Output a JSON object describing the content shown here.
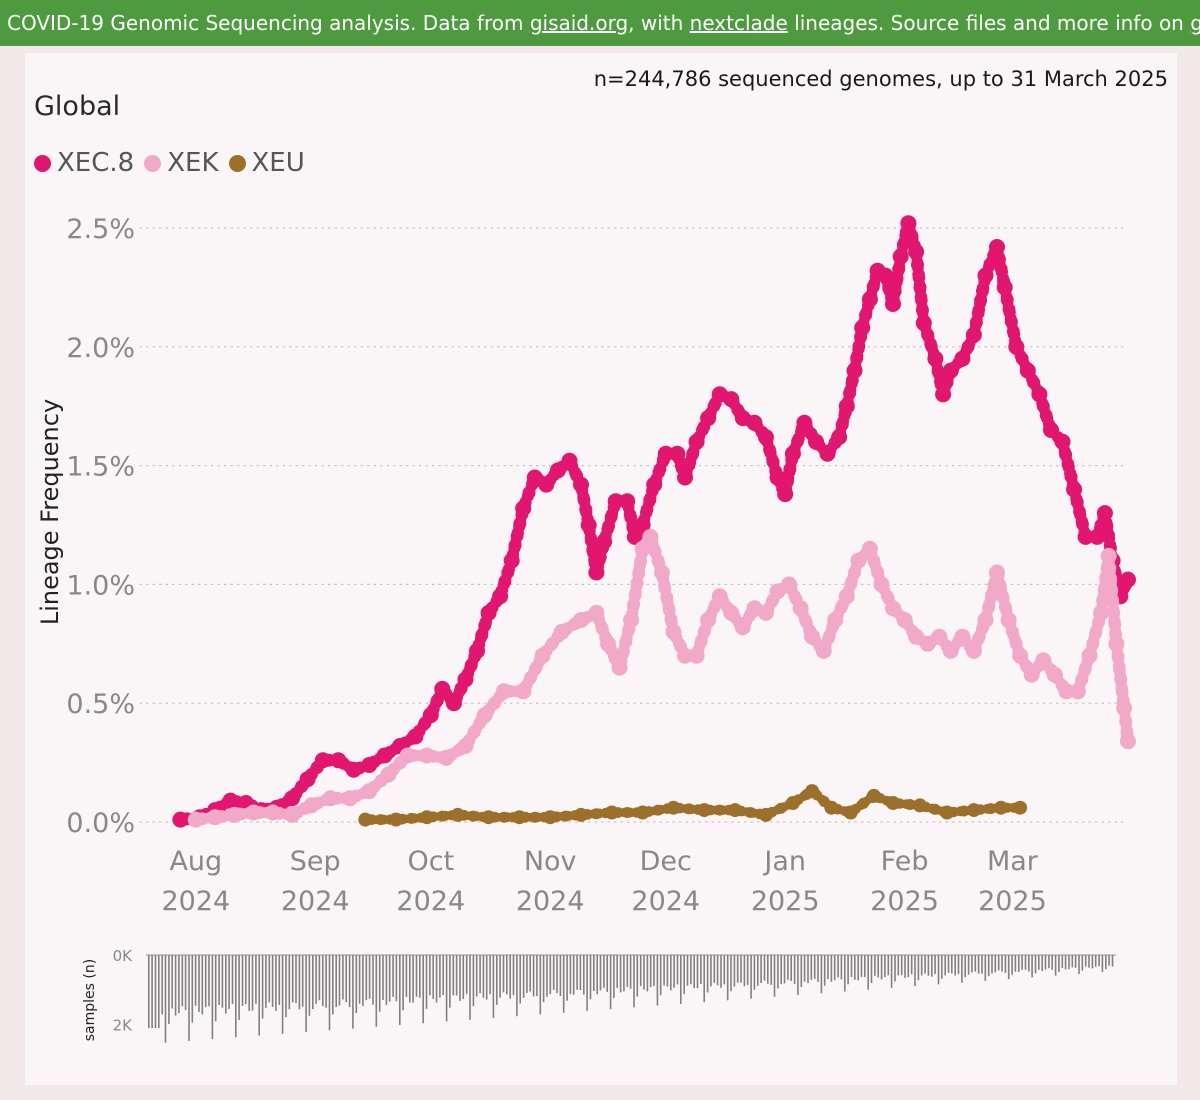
{
  "banner": {
    "text1": "COVID-19 Genomic Sequencing analysis. Data from ",
    "link1": "gisaid.org",
    "text2": ", with ",
    "link2": "nextclade",
    "text3": " lineages. Source files and more info on ",
    "link3": "github",
    "text4": ".",
    "color": "#4e9a3e"
  },
  "subtitle": "n=244,786 sequenced genomes, up to 31 March 2025",
  "region_title": "Global",
  "chart_data": {
    "type": "scatter",
    "ylabel": "Lineage Frequency",
    "y_tick_labels": [
      "0.0%",
      "0.5%",
      "1.0%",
      "1.5%",
      "2.0%",
      "2.5%"
    ],
    "y_ticks": [
      0,
      0.5,
      1.0,
      1.5,
      2.0,
      2.5
    ],
    "ylim": [
      0,
      2.7
    ],
    "x_range": [
      "2024-07-24",
      "2025-03-31"
    ],
    "x_ticks": [
      {
        "date": "2024-08-01",
        "month": "Aug",
        "year": "2024"
      },
      {
        "date": "2024-09-01",
        "month": "Sep",
        "year": "2024"
      },
      {
        "date": "2024-10-01",
        "month": "Oct",
        "year": "2024"
      },
      {
        "date": "2024-11-01",
        "month": "Nov",
        "year": "2024"
      },
      {
        "date": "2024-12-01",
        "month": "Dec",
        "year": "2024"
      },
      {
        "date": "2025-01-01",
        "month": "Jan",
        "year": "2025"
      },
      {
        "date": "2025-02-01",
        "month": "Feb",
        "year": "2025"
      },
      {
        "date": "2025-03-01",
        "month": "Mar",
        "year": "2025"
      }
    ],
    "grid": "horizontal-dotted",
    "legend_position": "top-left",
    "series": [
      {
        "name": "XEC.8",
        "color": "#e2166f",
        "points": [
          [
            "2024-07-28",
            0.01
          ],
          [
            "2024-08-02",
            0.02
          ],
          [
            "2024-08-06",
            0.05
          ],
          [
            "2024-08-10",
            0.09
          ],
          [
            "2024-08-14",
            0.08
          ],
          [
            "2024-08-18",
            0.05
          ],
          [
            "2024-08-22",
            0.06
          ],
          [
            "2024-08-26",
            0.1
          ],
          [
            "2024-08-30",
            0.18
          ],
          [
            "2024-09-03",
            0.26
          ],
          [
            "2024-09-07",
            0.26
          ],
          [
            "2024-09-11",
            0.22
          ],
          [
            "2024-09-15",
            0.24
          ],
          [
            "2024-09-19",
            0.28
          ],
          [
            "2024-09-23",
            0.32
          ],
          [
            "2024-09-27",
            0.36
          ],
          [
            "2024-10-01",
            0.45
          ],
          [
            "2024-10-04",
            0.56
          ],
          [
            "2024-10-07",
            0.5
          ],
          [
            "2024-10-10",
            0.6
          ],
          [
            "2024-10-13",
            0.72
          ],
          [
            "2024-10-16",
            0.88
          ],
          [
            "2024-10-19",
            0.95
          ],
          [
            "2024-10-22",
            1.1
          ],
          [
            "2024-10-25",
            1.32
          ],
          [
            "2024-10-28",
            1.45
          ],
          [
            "2024-10-31",
            1.42
          ],
          [
            "2024-11-03",
            1.48
          ],
          [
            "2024-11-06",
            1.52
          ],
          [
            "2024-11-09",
            1.42
          ],
          [
            "2024-11-11",
            1.25
          ],
          [
            "2024-11-13",
            1.05
          ],
          [
            "2024-11-15",
            1.18
          ],
          [
            "2024-11-18",
            1.35
          ],
          [
            "2024-11-21",
            1.35
          ],
          [
            "2024-11-23",
            1.2
          ],
          [
            "2024-11-25",
            1.25
          ],
          [
            "2024-11-28",
            1.42
          ],
          [
            "2024-12-01",
            1.55
          ],
          [
            "2024-12-04",
            1.55
          ],
          [
            "2024-12-06",
            1.45
          ],
          [
            "2024-12-09",
            1.6
          ],
          [
            "2024-12-12",
            1.7
          ],
          [
            "2024-12-15",
            1.8
          ],
          [
            "2024-12-18",
            1.78
          ],
          [
            "2024-12-21",
            1.7
          ],
          [
            "2024-12-24",
            1.68
          ],
          [
            "2024-12-27",
            1.62
          ],
          [
            "2024-12-30",
            1.45
          ],
          [
            "2025-01-01",
            1.38
          ],
          [
            "2025-01-03",
            1.55
          ],
          [
            "2025-01-06",
            1.68
          ],
          [
            "2025-01-09",
            1.6
          ],
          [
            "2025-01-12",
            1.55
          ],
          [
            "2025-01-15",
            1.62
          ],
          [
            "2025-01-17",
            1.75
          ],
          [
            "2025-01-19",
            1.9
          ],
          [
            "2025-01-21",
            2.08
          ],
          [
            "2025-01-23",
            2.2
          ],
          [
            "2025-01-25",
            2.32
          ],
          [
            "2025-01-27",
            2.3
          ],
          [
            "2025-01-29",
            2.18
          ],
          [
            "2025-01-31",
            2.38
          ],
          [
            "2025-02-02",
            2.52
          ],
          [
            "2025-02-04",
            2.4
          ],
          [
            "2025-02-06",
            2.1
          ],
          [
            "2025-02-09",
            1.95
          ],
          [
            "2025-02-11",
            1.8
          ],
          [
            "2025-02-13",
            1.9
          ],
          [
            "2025-02-16",
            1.95
          ],
          [
            "2025-02-19",
            2.05
          ],
          [
            "2025-02-22",
            2.3
          ],
          [
            "2025-02-25",
            2.42
          ],
          [
            "2025-02-27",
            2.25
          ],
          [
            "2025-03-02",
            2.0
          ],
          [
            "2025-03-05",
            1.9
          ],
          [
            "2025-03-08",
            1.8
          ],
          [
            "2025-03-11",
            1.65
          ],
          [
            "2025-03-14",
            1.6
          ],
          [
            "2025-03-17",
            1.4
          ],
          [
            "2025-03-20",
            1.2
          ],
          [
            "2025-03-23",
            1.2
          ],
          [
            "2025-03-25",
            1.3
          ],
          [
            "2025-03-27",
            1.1
          ],
          [
            "2025-03-29",
            0.95
          ],
          [
            "2025-03-31",
            1.02
          ]
        ]
      },
      {
        "name": "XEK",
        "color": "#f2a9c8",
        "points": [
          [
            "2024-08-01",
            0.01
          ],
          [
            "2024-08-06",
            0.02
          ],
          [
            "2024-08-11",
            0.03
          ],
          [
            "2024-08-16",
            0.04
          ],
          [
            "2024-08-21",
            0.04
          ],
          [
            "2024-08-26",
            0.03
          ],
          [
            "2024-08-31",
            0.07
          ],
          [
            "2024-09-05",
            0.1
          ],
          [
            "2024-09-10",
            0.1
          ],
          [
            "2024-09-15",
            0.13
          ],
          [
            "2024-09-20",
            0.2
          ],
          [
            "2024-09-25",
            0.28
          ],
          [
            "2024-09-30",
            0.28
          ],
          [
            "2024-10-05",
            0.27
          ],
          [
            "2024-10-10",
            0.32
          ],
          [
            "2024-10-15",
            0.45
          ],
          [
            "2024-10-20",
            0.55
          ],
          [
            "2024-10-25",
            0.55
          ],
          [
            "2024-10-30",
            0.7
          ],
          [
            "2024-11-04",
            0.8
          ],
          [
            "2024-11-09",
            0.85
          ],
          [
            "2024-11-13",
            0.88
          ],
          [
            "2024-11-16",
            0.75
          ],
          [
            "2024-11-19",
            0.65
          ],
          [
            "2024-11-22",
            0.85
          ],
          [
            "2024-11-25",
            1.15
          ],
          [
            "2024-11-27",
            1.2
          ],
          [
            "2024-11-30",
            1.05
          ],
          [
            "2024-12-03",
            0.8
          ],
          [
            "2024-12-06",
            0.7
          ],
          [
            "2024-12-09",
            0.7
          ],
          [
            "2024-12-12",
            0.85
          ],
          [
            "2024-12-15",
            0.95
          ],
          [
            "2024-12-18",
            0.88
          ],
          [
            "2024-12-21",
            0.82
          ],
          [
            "2024-12-24",
            0.9
          ],
          [
            "2024-12-27",
            0.88
          ],
          [
            "2024-12-30",
            0.97
          ],
          [
            "2025-01-02",
            1.0
          ],
          [
            "2025-01-05",
            0.9
          ],
          [
            "2025-01-08",
            0.78
          ],
          [
            "2025-01-11",
            0.72
          ],
          [
            "2025-01-14",
            0.85
          ],
          [
            "2025-01-17",
            0.95
          ],
          [
            "2025-01-20",
            1.1
          ],
          [
            "2025-01-23",
            1.15
          ],
          [
            "2025-01-26",
            1.0
          ],
          [
            "2025-01-29",
            0.9
          ],
          [
            "2025-02-01",
            0.85
          ],
          [
            "2025-02-04",
            0.78
          ],
          [
            "2025-02-07",
            0.75
          ],
          [
            "2025-02-10",
            0.78
          ],
          [
            "2025-02-13",
            0.72
          ],
          [
            "2025-02-16",
            0.78
          ],
          [
            "2025-02-19",
            0.72
          ],
          [
            "2025-02-22",
            0.85
          ],
          [
            "2025-02-25",
            1.05
          ],
          [
            "2025-02-28",
            0.85
          ],
          [
            "2025-03-03",
            0.7
          ],
          [
            "2025-03-06",
            0.62
          ],
          [
            "2025-03-09",
            0.68
          ],
          [
            "2025-03-12",
            0.62
          ],
          [
            "2025-03-15",
            0.55
          ],
          [
            "2025-03-18",
            0.55
          ],
          [
            "2025-03-21",
            0.7
          ],
          [
            "2025-03-24",
            0.88
          ],
          [
            "2025-03-26",
            1.12
          ],
          [
            "2025-03-28",
            0.75
          ],
          [
            "2025-03-30",
            0.48
          ],
          [
            "2025-03-31",
            0.34
          ]
        ]
      },
      {
        "name": "XEU",
        "color": "#9c6f2a",
        "points": [
          [
            "2024-09-14",
            0.01
          ],
          [
            "2024-09-22",
            0.01
          ],
          [
            "2024-09-30",
            0.02
          ],
          [
            "2024-10-08",
            0.03
          ],
          [
            "2024-10-16",
            0.02
          ],
          [
            "2024-10-24",
            0.02
          ],
          [
            "2024-11-01",
            0.02
          ],
          [
            "2024-11-09",
            0.03
          ],
          [
            "2024-11-17",
            0.04
          ],
          [
            "2024-11-25",
            0.04
          ],
          [
            "2024-12-03",
            0.06
          ],
          [
            "2024-12-11",
            0.05
          ],
          [
            "2024-12-19",
            0.05
          ],
          [
            "2024-12-27",
            0.03
          ],
          [
            "2025-01-03",
            0.08
          ],
          [
            "2025-01-08",
            0.13
          ],
          [
            "2025-01-13",
            0.06
          ],
          [
            "2025-01-18",
            0.04
          ],
          [
            "2025-01-24",
            0.11
          ],
          [
            "2025-01-29",
            0.08
          ],
          [
            "2025-02-05",
            0.07
          ],
          [
            "2025-02-12",
            0.04
          ],
          [
            "2025-02-19",
            0.05
          ],
          [
            "2025-02-26",
            0.06
          ],
          [
            "2025-03-03",
            0.06
          ]
        ]
      }
    ]
  },
  "samples_chart": {
    "ylabel": "samples (n)",
    "y_tick_labels": [
      "0K",
      "2K"
    ],
    "y_ticks": [
      0,
      2000
    ],
    "ylim": [
      0,
      2850
    ],
    "bar_color": "#808080"
  }
}
